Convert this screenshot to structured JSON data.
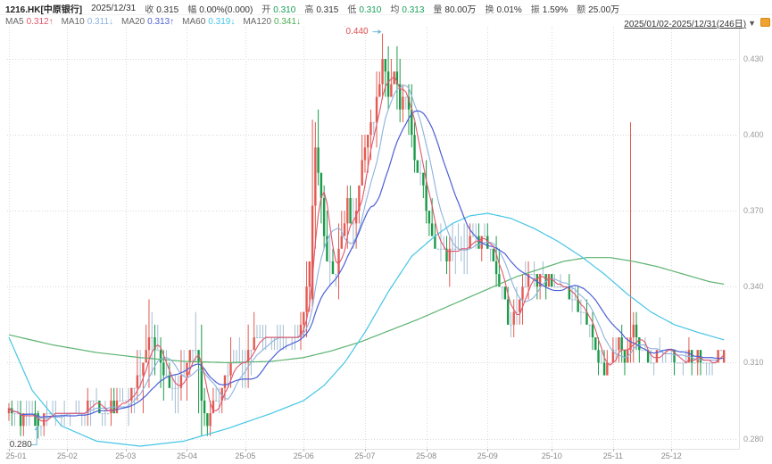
{
  "header": {
    "symbol": "1216.HK[中原银行]",
    "date": "2025/12/31",
    "fields": [
      {
        "key": "close",
        "label": "收",
        "value": "0.315",
        "color": "#333333"
      },
      {
        "key": "change",
        "label": "幅",
        "value": "0.00%(0.000)",
        "color": "#333333"
      },
      {
        "key": "open",
        "label": "开",
        "value": "0.310",
        "color": "#169e57"
      },
      {
        "key": "high",
        "label": "高",
        "value": "0.315",
        "color": "#333333"
      },
      {
        "key": "low",
        "label": "低",
        "value": "0.310",
        "color": "#169e57"
      },
      {
        "key": "avg",
        "label": "均",
        "value": "0.313",
        "color": "#169e57"
      },
      {
        "key": "volume",
        "label": "量",
        "value": "80.00万",
        "color": "#333333"
      },
      {
        "key": "turnover-rate",
        "label": "换",
        "value": "0.01%",
        "color": "#333333"
      },
      {
        "key": "amplitude",
        "label": "振",
        "value": "1.59%",
        "color": "#333333"
      },
      {
        "key": "amount",
        "label": "额",
        "value": "25.00万",
        "color": "#333333"
      }
    ],
    "ma_items": [
      {
        "key": "ma5",
        "label": "MA5",
        "value": "0.312↑",
        "color": "#e0566c"
      },
      {
        "key": "ma10",
        "label": "MA10",
        "value": "0.311↓",
        "color": "#8cb2de"
      },
      {
        "key": "ma20",
        "label": "MA20",
        "value": "0.313↑",
        "color": "#4c5fd6"
      },
      {
        "key": "ma60",
        "label": "MA60",
        "value": "0.319↓",
        "color": "#45c5e5"
      },
      {
        "key": "ma120",
        "label": "MA120",
        "value": "0.341↓",
        "color": "#4bae53"
      }
    ],
    "range_selector": "2025/01/02-2025/12/31(246日)",
    "dropdown_icon": "▼"
  },
  "chart_data": {
    "type": "candlestick",
    "days": 246,
    "ylim": [
      0.276,
      0.443
    ],
    "grid": true,
    "axis": {
      "y_ticks": [
        {
          "label": "0.430",
          "value": 0.43
        },
        {
          "label": "0.400",
          "value": 0.4
        },
        {
          "label": "0.370",
          "value": 0.37
        },
        {
          "label": "0.340",
          "value": 0.34
        },
        {
          "label": "0.310",
          "value": 0.31
        },
        {
          "label": "0.280",
          "value": 0.28
        }
      ],
      "months": [
        {
          "label": "25-01",
          "day": 0
        },
        {
          "label": "25-02",
          "day": 20
        },
        {
          "label": "25-03",
          "day": 40
        },
        {
          "label": "25-04",
          "day": 61
        },
        {
          "label": "25-05",
          "day": 81
        },
        {
          "label": "25-06",
          "day": 101
        },
        {
          "label": "25-07",
          "day": 122
        },
        {
          "label": "25-08",
          "day": 143
        },
        {
          "label": "25-09",
          "day": 164
        },
        {
          "label": "25-10",
          "day": 186
        },
        {
          "label": "25-11",
          "day": 207
        },
        {
          "label": "25-12",
          "day": 227
        }
      ]
    },
    "colors": {
      "up": "#e25b52",
      "down": "#1b9a48",
      "flat": "#a4bed2",
      "ma5": "#e0566c",
      "ma10": "#8cb2de",
      "ma20": "#4c5fd6",
      "ma60": "#45c5e5",
      "ma120": "#5cb270",
      "grid": "#dadada",
      "axis": "#e3e3e3",
      "arrow": "#74b6dc",
      "marker": "#e04f4f"
    },
    "annotations": {
      "high": {
        "label": "0.440",
        "day": 128,
        "value": 0.44
      },
      "low": {
        "label": "0.280",
        "day": 10,
        "value": 0.28
      }
    },
    "close_keypoints": [
      [
        0,
        0.292,
        0.006
      ],
      [
        3,
        0.287,
        0.007
      ],
      [
        7,
        0.29,
        0.005
      ],
      [
        10,
        0.286,
        0.005
      ],
      [
        14,
        0.29,
        0.004
      ],
      [
        20,
        0.291,
        0.004
      ],
      [
        26,
        0.292,
        0.005
      ],
      [
        28,
        0.294,
        0.011
      ],
      [
        31,
        0.291,
        0.005
      ],
      [
        36,
        0.292,
        0.005
      ],
      [
        40,
        0.294,
        0.006
      ],
      [
        44,
        0.303,
        0.014
      ],
      [
        48,
        0.317,
        0.018
      ],
      [
        51,
        0.31,
        0.012
      ],
      [
        55,
        0.301,
        0.01
      ],
      [
        58,
        0.3,
        0.009
      ],
      [
        62,
        0.312,
        0.014
      ],
      [
        64,
        0.318,
        0.016
      ],
      [
        66,
        0.296,
        0.022
      ],
      [
        68,
        0.288,
        0.01
      ],
      [
        71,
        0.297,
        0.009
      ],
      [
        76,
        0.309,
        0.011
      ],
      [
        81,
        0.312,
        0.008
      ],
      [
        83,
        0.317,
        0.012
      ],
      [
        88,
        0.319,
        0.007
      ],
      [
        93,
        0.321,
        0.008
      ],
      [
        97,
        0.317,
        0.007
      ],
      [
        101,
        0.328,
        0.01
      ],
      [
        104,
        0.368,
        0.024
      ],
      [
        105,
        0.392,
        0.018
      ],
      [
        107,
        0.37,
        0.015
      ],
      [
        109,
        0.352,
        0.013
      ],
      [
        111,
        0.343,
        0.01
      ],
      [
        114,
        0.362,
        0.014
      ],
      [
        116,
        0.374,
        0.014
      ],
      [
        118,
        0.363,
        0.011
      ],
      [
        120,
        0.38,
        0.012
      ],
      [
        122,
        0.391,
        0.013
      ],
      [
        124,
        0.402,
        0.014
      ],
      [
        126,
        0.415,
        0.013
      ],
      [
        128,
        0.428,
        0.013
      ],
      [
        130,
        0.417,
        0.011
      ],
      [
        132,
        0.424,
        0.011
      ],
      [
        134,
        0.412,
        0.011
      ],
      [
        136,
        0.417,
        0.01
      ],
      [
        138,
        0.401,
        0.011
      ],
      [
        140,
        0.386,
        0.01
      ],
      [
        142,
        0.377,
        0.01
      ],
      [
        144,
        0.364,
        0.011
      ],
      [
        146,
        0.353,
        0.009
      ],
      [
        148,
        0.358,
        0.008
      ],
      [
        150,
        0.351,
        0.008
      ],
      [
        152,
        0.356,
        0.011
      ],
      [
        155,
        0.352,
        0.008
      ],
      [
        158,
        0.359,
        0.013
      ],
      [
        160,
        0.357,
        0.007
      ],
      [
        163,
        0.36,
        0.007
      ],
      [
        165,
        0.355,
        0.007
      ],
      [
        167,
        0.346,
        0.008
      ],
      [
        169,
        0.337,
        0.009
      ],
      [
        171,
        0.327,
        0.008
      ],
      [
        173,
        0.33,
        0.008
      ],
      [
        175,
        0.336,
        0.009
      ],
      [
        177,
        0.341,
        0.009
      ],
      [
        180,
        0.344,
        0.007
      ],
      [
        183,
        0.342,
        0.005
      ],
      [
        187,
        0.343,
        0.005
      ],
      [
        190,
        0.339,
        0.005
      ],
      [
        193,
        0.336,
        0.006
      ],
      [
        196,
        0.331,
        0.007
      ],
      [
        199,
        0.324,
        0.007
      ],
      [
        202,
        0.31,
        0.009
      ],
      [
        204,
        0.306,
        0.007
      ],
      [
        207,
        0.314,
        0.009
      ],
      [
        209,
        0.319,
        0.009
      ],
      [
        211,
        0.312,
        0.007
      ],
      [
        213,
        0.317,
        0.01
      ],
      [
        214,
        0.324,
        0.011
      ],
      [
        216,
        0.315,
        0.007
      ],
      [
        219,
        0.311,
        0.005
      ],
      [
        222,
        0.312,
        0.005
      ],
      [
        227,
        0.313,
        0.005
      ],
      [
        231,
        0.311,
        0.004
      ],
      [
        235,
        0.313,
        0.004
      ],
      [
        239,
        0.31,
        0.004
      ],
      [
        242,
        0.312,
        0.004
      ],
      [
        245,
        0.315,
        0.004
      ]
    ],
    "forced_days": {
      "0": [
        0.29,
        0.292,
        0.294,
        0.287
      ],
      "10": [
        0.29,
        0.285,
        0.291,
        0.28
      ],
      "104": [
        0.335,
        0.372,
        0.406,
        0.332
      ],
      "128": [
        0.42,
        0.43,
        0.44,
        0.414
      ],
      "213": [
        0.315,
        0.32,
        0.405,
        0.31
      ],
      "245": [
        0.31,
        0.315,
        0.315,
        0.31
      ]
    },
    "ma60_keypoints": [
      [
        0,
        0.32
      ],
      [
        8,
        0.299
      ],
      [
        18,
        0.285
      ],
      [
        30,
        0.279
      ],
      [
        45,
        0.277
      ],
      [
        60,
        0.279
      ],
      [
        75,
        0.284
      ],
      [
        90,
        0.29
      ],
      [
        101,
        0.295
      ],
      [
        108,
        0.301
      ],
      [
        115,
        0.31
      ],
      [
        122,
        0.322
      ],
      [
        130,
        0.338
      ],
      [
        138,
        0.352
      ],
      [
        146,
        0.36
      ],
      [
        152,
        0.365
      ],
      [
        158,
        0.368
      ],
      [
        164,
        0.369
      ],
      [
        172,
        0.367
      ],
      [
        180,
        0.363
      ],
      [
        188,
        0.358
      ],
      [
        196,
        0.352
      ],
      [
        204,
        0.345
      ],
      [
        212,
        0.337
      ],
      [
        220,
        0.33
      ],
      [
        228,
        0.325
      ],
      [
        236,
        0.322
      ],
      [
        245,
        0.319
      ]
    ],
    "ma120_keypoints": [
      [
        0,
        0.321
      ],
      [
        15,
        0.317
      ],
      [
        30,
        0.314
      ],
      [
        45,
        0.312
      ],
      [
        60,
        0.3105
      ],
      [
        75,
        0.31
      ],
      [
        90,
        0.3105
      ],
      [
        101,
        0.312
      ],
      [
        110,
        0.3145
      ],
      [
        120,
        0.318
      ],
      [
        130,
        0.3225
      ],
      [
        140,
        0.327
      ],
      [
        150,
        0.332
      ],
      [
        158,
        0.336
      ],
      [
        166,
        0.34
      ],
      [
        174,
        0.344
      ],
      [
        182,
        0.347
      ],
      [
        190,
        0.35
      ],
      [
        198,
        0.3515
      ],
      [
        206,
        0.3515
      ],
      [
        214,
        0.35
      ],
      [
        222,
        0.348
      ],
      [
        228,
        0.346
      ],
      [
        234,
        0.344
      ],
      [
        240,
        0.342
      ],
      [
        245,
        0.341
      ]
    ]
  }
}
